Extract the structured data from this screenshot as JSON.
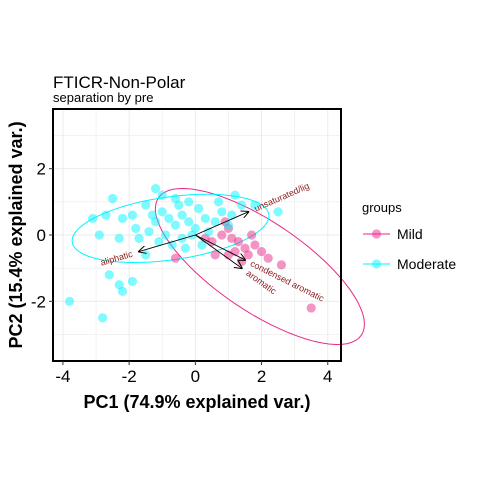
{
  "chart_data": {
    "type": "scatter",
    "title": "FTICR-Non-Polar",
    "subtitle": "separation by pre",
    "xlabel": "PC1 (74.9% explained var.)",
    "ylabel": "PC2 (15.4% explained var.)",
    "xlim": [
      -4.3,
      4.4
    ],
    "ylim": [
      -3.8,
      3.8
    ],
    "xticks": [
      -4,
      -2,
      0,
      2,
      4
    ],
    "yticks": [
      -2,
      0,
      2
    ],
    "xtick_labels": [
      "-4",
      "-2",
      "0",
      "2",
      "4"
    ],
    "ytick_labels": [
      "-2",
      "0",
      "2"
    ],
    "grid": true,
    "legend_title": "groups",
    "legend_position": "right",
    "series": [
      {
        "name": "Mild",
        "color": "#e7298a",
        "points": [
          [
            0.9,
            0.4
          ],
          [
            1.0,
            0.2
          ],
          [
            1.1,
            -0.1
          ],
          [
            1.3,
            -0.2
          ],
          [
            1.5,
            -0.4
          ],
          [
            1.8,
            -0.3
          ],
          [
            2.0,
            -0.5
          ],
          [
            2.6,
            -0.9
          ],
          [
            3.5,
            -2.2
          ],
          [
            1.4,
            -0.8
          ],
          [
            0.6,
            -0.6
          ],
          [
            -0.6,
            -0.7
          ],
          [
            0.8,
            0.0
          ],
          [
            1.7,
            0.0
          ],
          [
            0.5,
            -0.2
          ],
          [
            1.2,
            -0.5
          ],
          [
            2.2,
            -0.7
          ],
          [
            1.0,
            -0.6
          ],
          [
            0.3,
            -0.1
          ],
          [
            1.6,
            -0.6
          ]
        ],
        "ellipse": {
          "cx": 1.95,
          "cy": -0.95,
          "rx": 3.7,
          "ry": 1.35,
          "angle_deg": -34
        }
      },
      {
        "name": "Moderate",
        "color": "#00f5ff",
        "points": [
          [
            -3.8,
            -2.0
          ],
          [
            -2.8,
            -2.5
          ],
          [
            -2.2,
            -1.7
          ],
          [
            -2.3,
            -1.5
          ],
          [
            -2.6,
            -1.2
          ],
          [
            -1.9,
            -1.4
          ],
          [
            -2.5,
            1.1
          ],
          [
            -2.2,
            0.5
          ],
          [
            -1.9,
            0.6
          ],
          [
            -1.5,
            0.9
          ],
          [
            -1.3,
            0.6
          ],
          [
            -1.2,
            0.4
          ],
          [
            -1.0,
            0.7
          ],
          [
            -0.8,
            0.5
          ],
          [
            -0.6,
            0.3
          ],
          [
            -0.4,
            0.6
          ],
          [
            -0.2,
            0.4
          ],
          [
            0.0,
            0.2
          ],
          [
            -1.2,
            1.4
          ],
          [
            -1.0,
            1.2
          ],
          [
            -0.6,
            1.1
          ],
          [
            -0.2,
            1.0
          ],
          [
            0.1,
            0.8
          ],
          [
            0.3,
            0.5
          ],
          [
            -1.7,
            -0.1
          ],
          [
            -1.4,
            0.1
          ],
          [
            -1.1,
            -0.2
          ],
          [
            -0.9,
            0.0
          ],
          [
            -0.7,
            -0.3
          ],
          [
            -0.4,
            -0.1
          ],
          [
            -0.1,
            0.0
          ],
          [
            0.2,
            -0.3
          ],
          [
            0.4,
            0.1
          ],
          [
            0.6,
            0.4
          ],
          [
            0.8,
            0.7
          ],
          [
            1.1,
            0.6
          ],
          [
            1.4,
            0.9
          ],
          [
            1.8,
            0.9
          ],
          [
            1.2,
            1.2
          ],
          [
            2.5,
            0.7
          ],
          [
            -2.7,
            0.6
          ],
          [
            -2.3,
            -0.1
          ],
          [
            -1.8,
            0.2
          ],
          [
            -0.5,
            0.9
          ],
          [
            0.7,
            1.0
          ],
          [
            1.0,
            0.3
          ],
          [
            -3.1,
            0.5
          ],
          [
            -2.9,
            0.0
          ],
          [
            -1.5,
            -0.6
          ],
          [
            -0.3,
            -0.4
          ]
        ],
        "ellipse": {
          "cx": -0.75,
          "cy": 0.2,
          "rx": 3.0,
          "ry": 0.95,
          "angle_deg": 8
        }
      }
    ],
    "loadings": [
      {
        "name": "unsaturated/lig",
        "x": 1.6,
        "y": 0.7
      },
      {
        "name": "aliphatic",
        "x": -1.7,
        "y": -0.5
      },
      {
        "name": "aromatic",
        "x": 1.4,
        "y": -1.0
      },
      {
        "name": "condensed aromatic",
        "x": 1.5,
        "y": -0.75
      }
    ],
    "loading_color": "#8b1a1a"
  }
}
